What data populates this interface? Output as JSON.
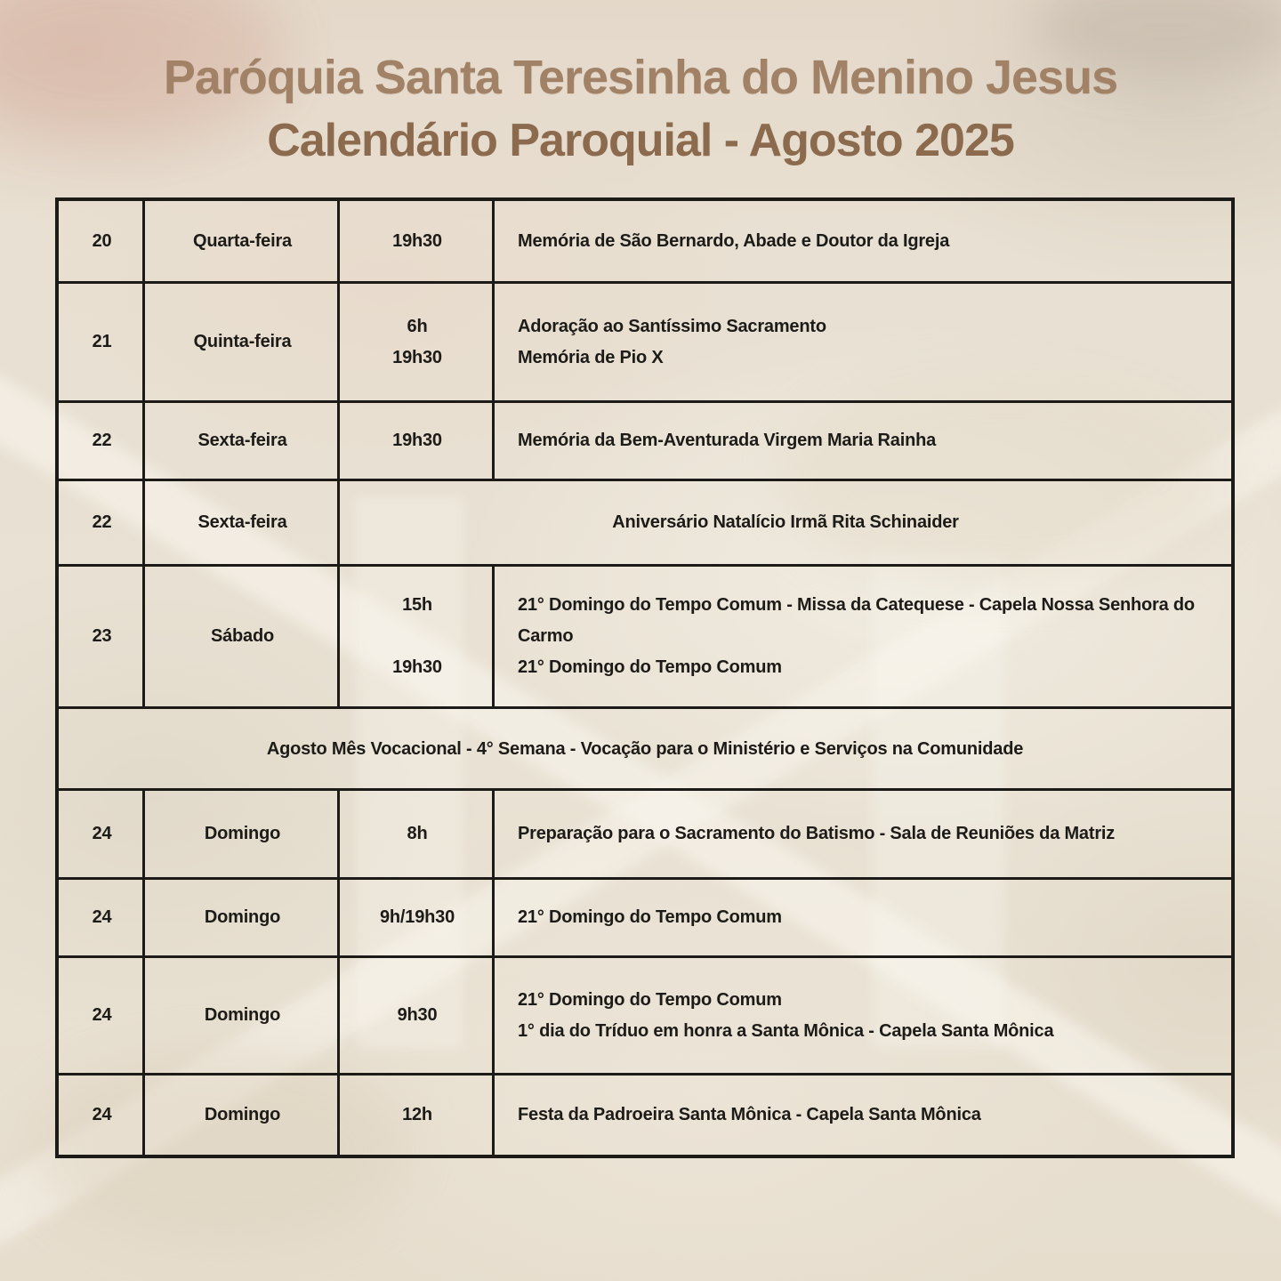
{
  "header": {
    "title": "Paróquia Santa Teresinha do Menino Jesus",
    "subtitle": "Calendário Paroquial - Agosto 2025"
  },
  "colors": {
    "title": "#a18266",
    "subtitle": "#8b6a4d",
    "table_ink": "#1d1b18",
    "paper": "#e7dfd2"
  },
  "table": {
    "rows": [
      {
        "type": "normal",
        "day": "20",
        "weekday": "Quarta-feira",
        "entries": [
          {
            "time": "19h30",
            "text": "Memória de São Bernardo, Abade e Doutor da Igreja"
          }
        ]
      },
      {
        "type": "normal",
        "day": "21",
        "weekday": "Quinta-feira",
        "entries": [
          {
            "time": "6h",
            "text": "Adoração ao Santíssimo Sacramento"
          },
          {
            "time": "19h30",
            "text": "Memória de Pio X"
          }
        ]
      },
      {
        "type": "normal",
        "day": "22",
        "weekday": "Sexta-feira",
        "entries": [
          {
            "time": "19h30",
            "text": "Memória da Bem-Aventurada Virgem Maria Rainha"
          }
        ]
      },
      {
        "type": "merged",
        "day": "22",
        "weekday": "Sexta-feira",
        "text": "Aniversário Natalício Irmã Rita Schinaider"
      },
      {
        "type": "normal",
        "day": "23",
        "weekday": "Sábado",
        "entries": [
          {
            "time": "15h",
            "text": "21° Domingo do Tempo Comum - Missa da Catequese - Capela Nossa Senhora do Carmo"
          },
          {
            "time": "19h30",
            "text": "21° Domingo do Tempo Comum"
          }
        ]
      },
      {
        "type": "banner",
        "text": "Agosto Mês Vocacional - 4° Semana - Vocação para o Ministério e Serviços na Comunidade"
      },
      {
        "type": "normal",
        "day": "24",
        "weekday": "Domingo",
        "entries": [
          {
            "time": "8h",
            "text": "Preparação para o Sacramento do Batismo - Sala de Reuniões da Matriz"
          }
        ]
      },
      {
        "type": "normal",
        "day": "24",
        "weekday": "Domingo",
        "entries": [
          {
            "time": "9h/19h30",
            "text": "21° Domingo do Tempo Comum"
          }
        ]
      },
      {
        "type": "normal",
        "day": "24",
        "weekday": "Domingo",
        "entries": [
          {
            "time": "9h30",
            "text": "21° Domingo do Tempo Comum\n1° dia do Tríduo em honra a Santa Mônica - Capela Santa Mônica"
          }
        ]
      },
      {
        "type": "normal",
        "day": "24",
        "weekday": "Domingo",
        "entries": [
          {
            "time": "12h",
            "text": "Festa da Padroeira Santa Mônica - Capela Santa Mônica"
          }
        ]
      }
    ]
  }
}
